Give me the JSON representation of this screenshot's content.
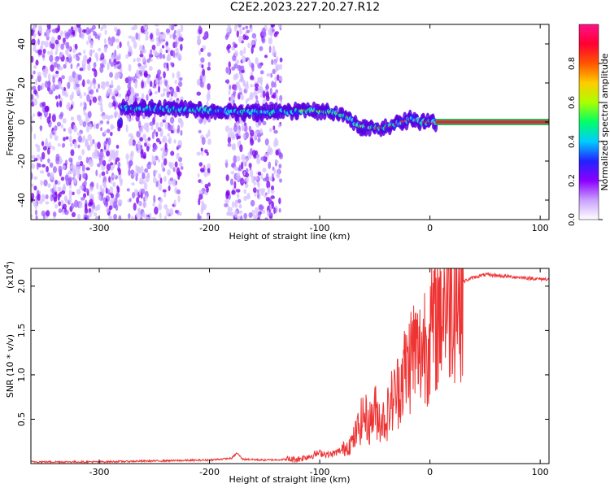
{
  "title": "C2E2.2023.227.20.27.R12",
  "chart_data": [
    {
      "type": "heatmap",
      "xlabel": "Height of straight line (km)",
      "ylabel": "Frequency (Hz)",
      "xlim": [
        -362,
        108
      ],
      "ylim": [
        -50,
        50
      ],
      "x_ticks": [
        -300,
        -200,
        -100,
        0,
        100
      ],
      "x_tick_labels": [
        "-300",
        "-200",
        "-100",
        "0",
        "100"
      ],
      "y_ticks": [
        -40,
        -20,
        0,
        20,
        40
      ],
      "y_tick_labels": [
        "-40",
        "-20",
        "0",
        "20",
        "40"
      ],
      "colorbar": {
        "label": "Normalized spectral amplitude",
        "range": [
          0,
          1
        ],
        "ticks": [
          0.0,
          0.2,
          0.4,
          0.6,
          0.8
        ],
        "tick_labels": [
          "0.0",
          "0.2",
          "0.4",
          "0.6",
          "0.8"
        ],
        "colors": [
          "#ffffff",
          "#c9a0ff",
          "#8a00ff",
          "#2222ff",
          "#00ccff",
          "#00ff66",
          "#aaff00",
          "#ffcc00",
          "#ff5500",
          "#ff0033",
          "#ff1188"
        ]
      },
      "ridge": {
        "description_points_x": [
          -280,
          -250,
          -200,
          -170,
          -140,
          -110,
          -90,
          -75,
          -65,
          -55,
          -45,
          -35,
          -25,
          -15,
          -8,
          0,
          10,
          50,
          108
        ],
        "description_points_y": [
          7,
          7,
          6,
          5,
          5,
          6,
          5,
          3,
          -2,
          -3,
          -3,
          -2,
          0,
          2,
          0,
          0,
          0,
          0,
          0
        ]
      },
      "noise_regions_x": [
        [
          -362,
          -280
        ],
        [
          -275,
          -225
        ],
        [
          -210,
          -200
        ],
        [
          -185,
          -135
        ]
      ],
      "flat_line": {
        "x_start": 5,
        "x_end": 108,
        "y": 0
      }
    },
    {
      "type": "line",
      "xlabel": "Height of straight line (km)",
      "ylabel": "SNR (10 * v/v)",
      "y_multiplier_label": "(x10",
      "y_multiplier_exp": "4",
      "xlim": [
        -362,
        108
      ],
      "ylim": [
        0,
        2.2
      ],
      "x_ticks": [
        -300,
        -200,
        -100,
        0,
        100
      ],
      "x_tick_labels": [
        "-300",
        "-200",
        "-100",
        "0",
        "100"
      ],
      "y_ticks": [
        0.5,
        1.0,
        1.5,
        2.0
      ],
      "y_tick_labels": [
        "0.5",
        "1.0",
        "1.5",
        "2.0"
      ],
      "color": "#ee3333",
      "series": [
        {
          "x": [
            -362,
            -300,
            -250,
            -200,
            -180,
            -175,
            -170,
            -150,
            -120,
            -110,
            -100,
            -90,
            -80,
            -70,
            -65,
            -60,
            -55,
            -50,
            -45,
            -40,
            -35,
            -30,
            -25,
            -20,
            -15,
            -10,
            -5,
            0,
            5,
            10,
            20,
            30,
            40,
            50,
            60,
            70,
            80,
            90,
            100,
            108
          ],
          "y": [
            0.02,
            0.02,
            0.03,
            0.04,
            0.06,
            0.12,
            0.05,
            0.04,
            0.05,
            0.08,
            0.12,
            0.1,
            0.15,
            0.25,
            0.4,
            0.55,
            0.45,
            0.6,
            0.5,
            0.5,
            0.7,
            0.8,
            1.0,
            1.1,
            1.3,
            1.2,
            1.4,
            1.45,
            1.6,
            1.8,
            1.95,
            2.05,
            2.1,
            2.13,
            2.12,
            2.11,
            2.1,
            2.09,
            2.08,
            2.08
          ]
        }
      ]
    }
  ]
}
